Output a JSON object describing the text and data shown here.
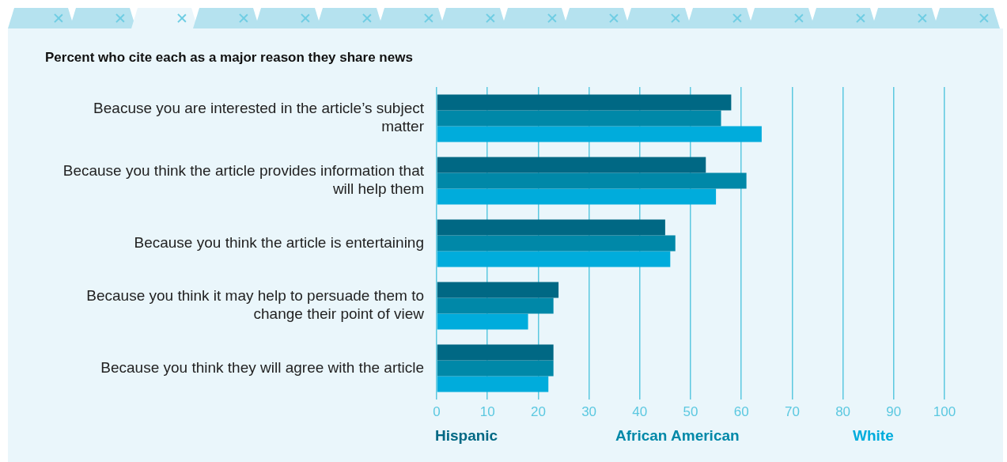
{
  "chart_data": {
    "type": "bar",
    "orientation": "horizontal",
    "title": "Percent who cite each as a major reason they share news",
    "categories": [
      "Beacuse you are interested in the article’s subject matter",
      "Because you think the article provides information that will help them",
      "Because you think the article is entertaining",
      "Because you think it may help to persuade them to change their point of view",
      "Because you think they will agree with the article"
    ],
    "series": [
      {
        "name": "Hispanic",
        "color": "#006884",
        "values": [
          58,
          53,
          45,
          24,
          23
        ]
      },
      {
        "name": "African American",
        "color": "#0088a8",
        "values": [
          56,
          61,
          47,
          23,
          23
        ]
      },
      {
        "name": "White",
        "color": "#00acdc",
        "values": [
          64,
          55,
          46,
          18,
          22
        ]
      }
    ],
    "xlim": [
      0,
      100
    ],
    "xticks": [
      0,
      10,
      20,
      30,
      40,
      50,
      60,
      70,
      80,
      90,
      100
    ],
    "grid": "x",
    "legend": "bottom"
  }
}
